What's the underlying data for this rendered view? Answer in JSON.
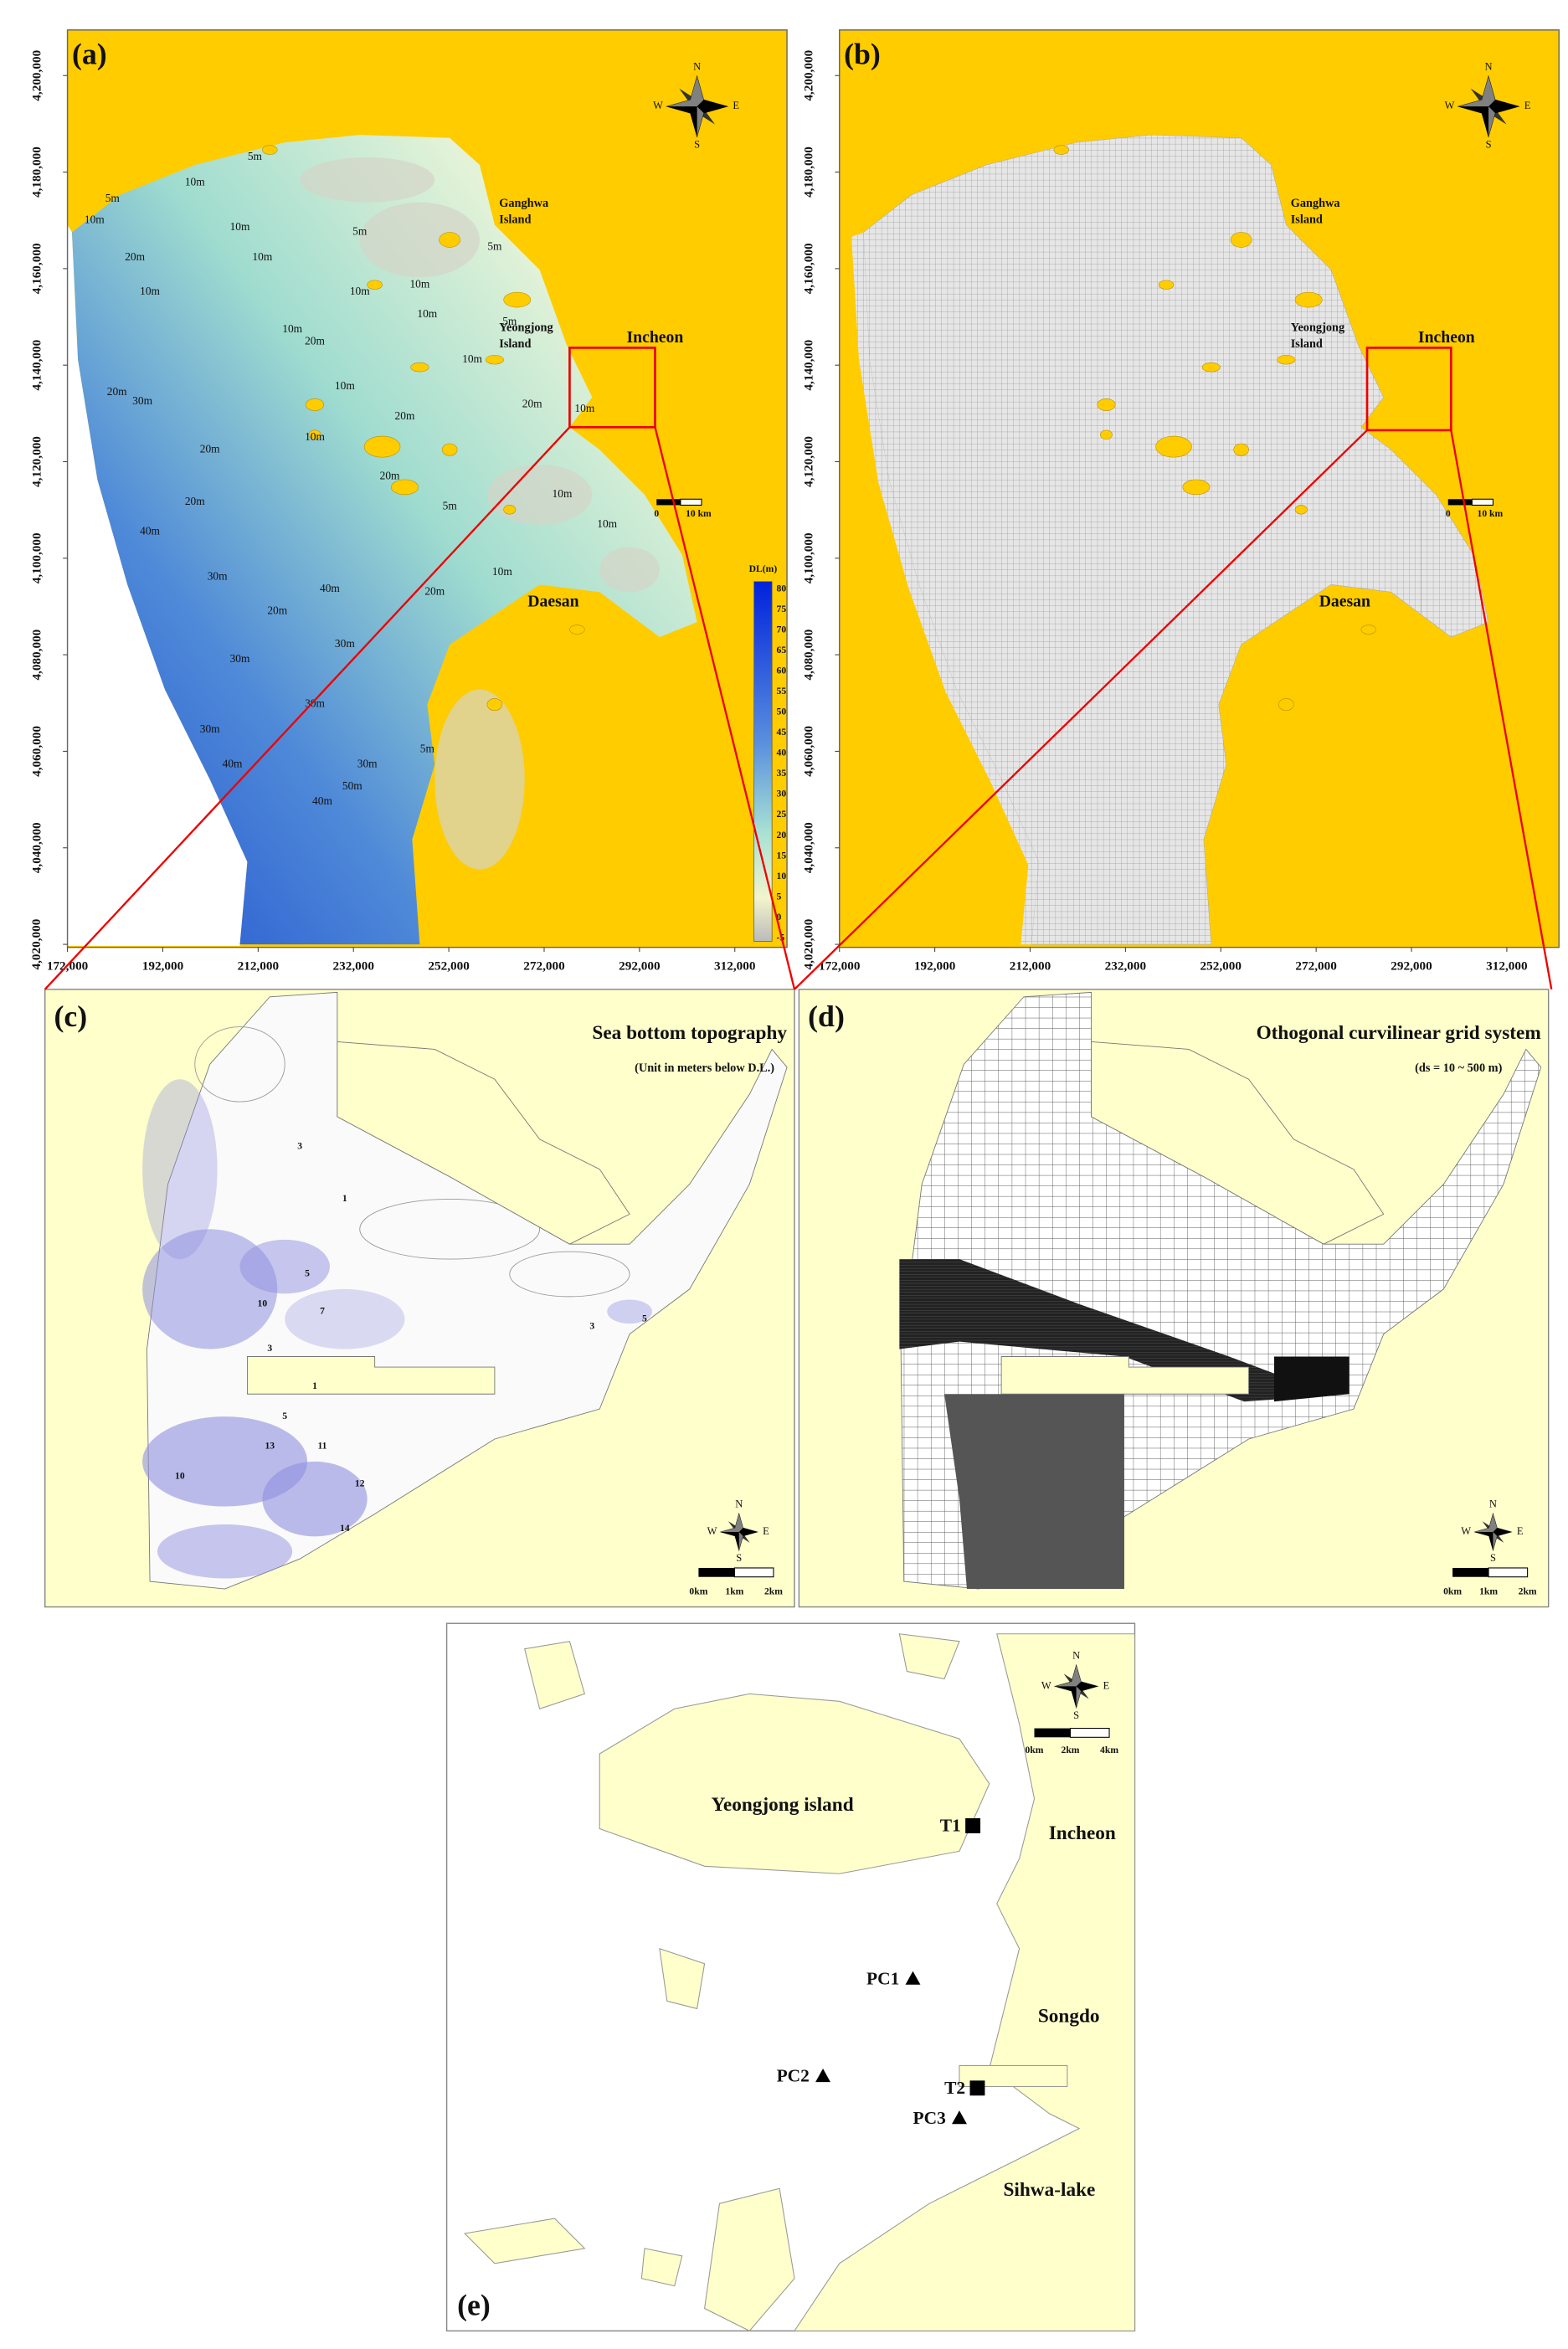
{
  "panels": {
    "a": {
      "label": "(a)",
      "compass": {
        "n": "N",
        "s": "S",
        "w": "W",
        "e": "E"
      },
      "places": {
        "ganghwa": [
          "Ganghwa",
          "Island"
        ],
        "yeongjong": [
          "Yeongjong",
          "Island"
        ],
        "incheon": "Incheon",
        "daesan": "Daesan"
      },
      "scale": [
        "0",
        "10 km"
      ],
      "colorbar": {
        "title": "DL(m)",
        "ticks": [
          80,
          75,
          70,
          65,
          60,
          55,
          50,
          45,
          40,
          35,
          30,
          25,
          20,
          15,
          10,
          5,
          0,
          -5
        ]
      },
      "depth_labels": [
        "5m",
        "10m",
        "5m",
        "10m",
        "10m",
        "20m",
        "10m",
        "10m",
        "5m",
        "10m",
        "5m",
        "10m",
        "10m",
        "10m",
        "20m",
        "20m",
        "30m",
        "10m",
        "20m",
        "10m",
        "5m",
        "20m",
        "10m",
        "10m",
        "20m",
        "20m",
        "40m",
        "20m",
        "5m",
        "10m",
        "30m",
        "40m",
        "20m",
        "30m",
        "30m",
        "20m",
        "10m",
        "30m",
        "40m",
        "30m",
        "50m",
        "40m",
        "30m",
        "5m",
        "10m"
      ],
      "yticks": [
        "4,020,000",
        "4,040,000",
        "4,060,000",
        "4,080,000",
        "4,100,000",
        "4,120,000",
        "4,140,000",
        "4,160,000",
        "4,180,000",
        "4,200,000"
      ],
      "xticks": [
        "172,000",
        "192,000",
        "212,000",
        "232,000",
        "252,000",
        "272,000",
        "292,000",
        "312,000"
      ]
    },
    "b": {
      "label": "(b)",
      "compass": {
        "n": "N",
        "s": "S",
        "w": "W",
        "e": "E"
      },
      "places": {
        "ganghwa": [
          "Ganghwa",
          "Island"
        ],
        "yeongjong": [
          "Yeongjong",
          "Island"
        ],
        "incheon": "Incheon",
        "daesan": "Daesan"
      },
      "scale": [
        "0",
        "10 km"
      ],
      "yticks": [
        "4,020,000",
        "4,040,000",
        "4,060,000",
        "4,080,000",
        "4,100,000",
        "4,120,000",
        "4,140,000",
        "4,160,000",
        "4,180,000",
        "4,200,000"
      ],
      "xticks": [
        "172,000",
        "192,000",
        "212,000",
        "232,000",
        "252,000",
        "272,000",
        "292,000",
        "312,000"
      ]
    },
    "c": {
      "label": "(c)",
      "title": "Sea bottom topography",
      "subtitle": "(Unit in meters below D.L.)",
      "compass": {
        "n": "N",
        "s": "S",
        "w": "W",
        "e": "E"
      },
      "scale": [
        "0km",
        "1km",
        "2km"
      ],
      "contour_labels": [
        "3",
        "1",
        "5",
        "10",
        "7",
        "3",
        "1",
        "5",
        "13",
        "11",
        "10",
        "12",
        "14",
        "3",
        "5"
      ]
    },
    "d": {
      "label": "(d)",
      "title": "Othogonal curvilinear grid system",
      "subtitle": "(ds = 10 ~ 500 m)",
      "compass": {
        "n": "N",
        "s": "S",
        "w": "W",
        "e": "E"
      },
      "scale": [
        "0km",
        "1km",
        "2km"
      ]
    },
    "e": {
      "label": "(e)",
      "compass": {
        "n": "N",
        "s": "S",
        "w": "W",
        "e": "E"
      },
      "scale": [
        "0km",
        "2km",
        "4km"
      ],
      "places": {
        "yeongjong": "Yeongjong island",
        "incheon": "Incheon",
        "songdo": "Songdo",
        "sihwa": "Sihwa-lake"
      },
      "stations": {
        "t1": "T1",
        "t2": "T2",
        "pc1": "PC1",
        "pc2": "PC2",
        "pc3": "PC3"
      }
    }
  }
}
